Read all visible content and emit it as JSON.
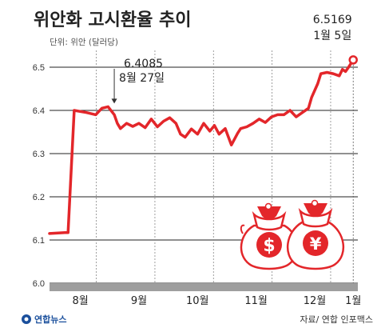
{
  "title": "위안화 고시환율 추이",
  "unit_label": "단위: 위안 (달러당)",
  "source": "자료/ 연합 인포맥스",
  "brand": "연합뉴스",
  "colors": {
    "line": "#e3262a",
    "axis": "#222222",
    "grid": "#222222",
    "band": "#9e9e9e"
  },
  "decoration": {
    "icon": "money-bags-icon",
    "currency_symbols": [
      "$",
      "¥"
    ]
  },
  "chart_data": {
    "type": "line",
    "ylim": [
      6.0,
      6.55
    ],
    "yticks": [
      6.0,
      6.1,
      6.2,
      6.3,
      6.4,
      6.5
    ],
    "x_range": [
      0,
      100
    ],
    "x_ticks": [
      {
        "x": 10,
        "label": "8월"
      },
      {
        "x": 29,
        "label": "9월"
      },
      {
        "x": 48,
        "label": "10월"
      },
      {
        "x": 67,
        "label": "11월"
      },
      {
        "x": 86,
        "label": "12월"
      },
      {
        "x": 98.5,
        "label": "1월"
      }
    ],
    "series": [
      {
        "x": [
          0,
          5,
          6,
          8,
          12,
          15,
          17,
          19,
          21,
          22,
          23,
          25,
          27,
          29,
          31,
          33,
          35,
          37,
          39,
          41,
          42.5,
          44,
          46,
          48,
          50,
          52,
          53.5,
          55,
          57,
          59,
          61,
          62,
          64,
          66,
          68,
          70,
          72,
          74,
          76,
          78,
          80,
          82,
          84,
          85,
          87,
          88,
          90,
          92,
          94,
          95,
          96,
          97,
          98.5
        ],
        "y": [
          6.115,
          6.117,
          6.117,
          6.4,
          6.395,
          6.39,
          6.405,
          6.4085,
          6.39,
          6.37,
          6.358,
          6.37,
          6.363,
          6.37,
          6.36,
          6.38,
          6.362,
          6.375,
          6.383,
          6.37,
          6.345,
          6.338,
          6.357,
          6.345,
          6.37,
          6.352,
          6.365,
          6.345,
          6.358,
          6.32,
          6.347,
          6.358,
          6.362,
          6.37,
          6.38,
          6.372,
          6.385,
          6.39,
          6.39,
          6.4,
          6.385,
          6.395,
          6.405,
          6.43,
          6.462,
          6.485,
          6.488,
          6.485,
          6.48,
          6.495,
          6.49,
          6.5,
          6.5169
        ]
      }
    ],
    "annotations": [
      {
        "x": 21,
        "y": 6.4085,
        "value": "6.4085",
        "date": "8월 27일"
      },
      {
        "x": 98.5,
        "y": 6.5169,
        "value": "6.5169",
        "date": "1월 5일"
      }
    ]
  }
}
